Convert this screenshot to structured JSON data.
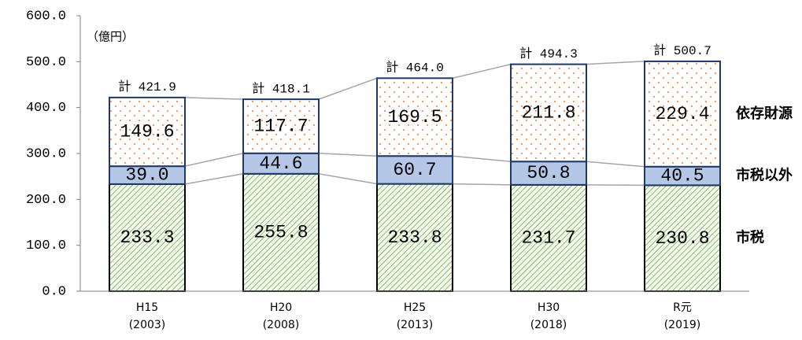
{
  "chart_data": {
    "type": "stacked_bar",
    "unit_label": "（億円）",
    "categories": [
      [
        "H15",
        "(2003)"
      ],
      [
        "H20",
        "(2008)"
      ],
      [
        "H25",
        "(2013)"
      ],
      [
        "H30",
        "(2018)"
      ],
      [
        "R元",
        "(2019)"
      ]
    ],
    "series": [
      {
        "name": "市税",
        "color": "#70ad47",
        "values": [
          233.3,
          255.8,
          233.8,
          231.7,
          230.8
        ],
        "value_labels": [
          "233.3",
          "255.8",
          "233.8",
          "231.7",
          "230.8"
        ]
      },
      {
        "name": "市税以外",
        "color": "#b4c7e7",
        "values": [
          39.0,
          44.6,
          60.7,
          50.8,
          40.5
        ],
        "value_labels": [
          "39.0",
          "44.6",
          "60.7",
          "50.8",
          "40.5"
        ]
      },
      {
        "name": "依存財源",
        "color": "#ed7d31",
        "values": [
          149.6,
          117.7,
          169.5,
          211.8,
          229.4
        ],
        "value_labels": [
          "149.6",
          "117.7",
          "169.5",
          "211.8",
          "229.4"
        ]
      }
    ],
    "totals": {
      "values": [
        421.9,
        418.1,
        464.0,
        494.3,
        500.7
      ],
      "value_labels": [
        "計 421.9",
        "計 418.1",
        "計 464.0",
        "計 494.3",
        "計 500.7"
      ]
    },
    "ylim": [
      0,
      600
    ],
    "yticks": [
      {
        "value": 0,
        "label": "0.0"
      },
      {
        "value": 100,
        "label": "100.0"
      },
      {
        "value": 200,
        "label": "200.0"
      },
      {
        "value": 300,
        "label": "300.0"
      },
      {
        "value": 400,
        "label": "400.0"
      },
      {
        "value": 500,
        "label": "500.0"
      },
      {
        "value": 600,
        "label": "600.0"
      }
    ],
    "grid": false
  }
}
